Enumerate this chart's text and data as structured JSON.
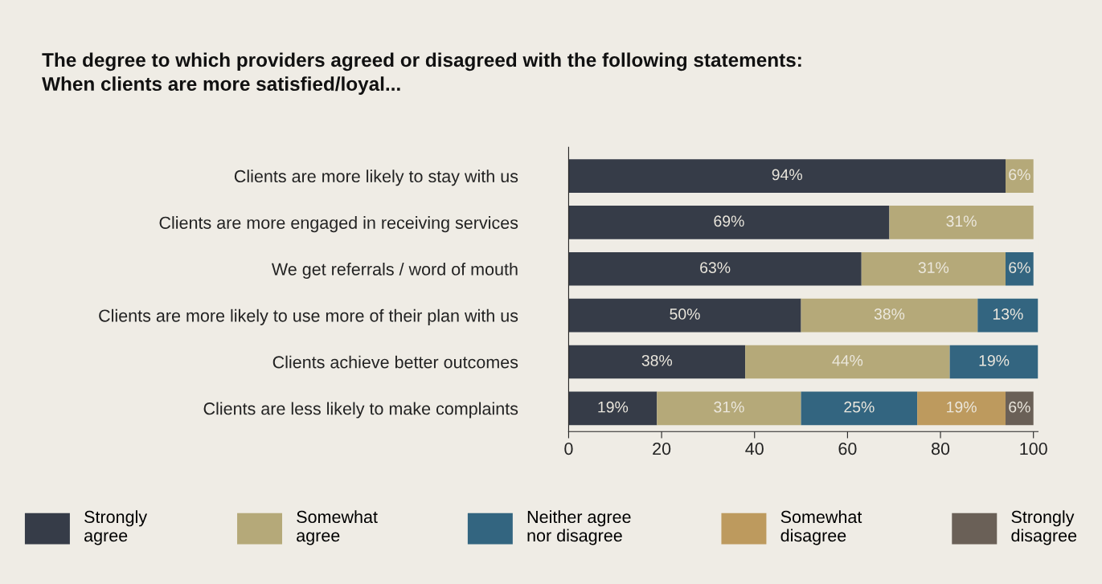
{
  "chart_data": {
    "type": "bar",
    "orientation": "horizontal",
    "stacked": true,
    "title": "The degree to which providers agreed or disagreed with the following statements:\nWhen clients are more satisfied/loyal...",
    "categories": [
      "Clients are more likely to stay with us",
      "Clients are more engaged in receiving services",
      "We get referrals / word of mouth",
      "Clients are more likely to use more of their plan with us",
      "Clients achieve better outcomes",
      "Clients are less likely to make complaints"
    ],
    "series": [
      {
        "name": "Strongly\nagree",
        "color": "#363c48",
        "values": [
          94,
          69,
          63,
          50,
          38,
          19
        ],
        "value_labels": [
          "94%",
          "69%",
          "63%",
          "50%",
          "38%",
          "19%"
        ]
      },
      {
        "name": "Somewhat\nagree",
        "color": "#b5a979",
        "values": [
          6,
          31,
          31,
          38,
          44,
          31
        ],
        "value_labels": [
          "6%",
          "31%",
          "31%",
          "38%",
          "44%",
          "31%"
        ]
      },
      {
        "name": "Neither agree\nnor disagree",
        "color": "#336580",
        "values": [
          null,
          null,
          6,
          13,
          19,
          25
        ],
        "value_labels": [
          null,
          null,
          "6%",
          "13%",
          "19%",
          "25%"
        ]
      },
      {
        "name": "Somewhat\ndisagree",
        "color": "#bd9a5e",
        "values": [
          null,
          null,
          null,
          null,
          null,
          19
        ],
        "value_labels": [
          null,
          null,
          null,
          null,
          null,
          "19%"
        ]
      },
      {
        "name": "Strongly\ndisagree",
        "color": "#6a6057",
        "values": [
          null,
          null,
          null,
          null,
          null,
          6
        ],
        "value_labels": [
          null,
          null,
          null,
          null,
          null,
          "6%"
        ]
      }
    ],
    "xlim": [
      0,
      101
    ],
    "xticks": [
      0,
      20,
      40,
      60,
      80,
      100
    ],
    "grid": false,
    "legend": "bottom"
  }
}
